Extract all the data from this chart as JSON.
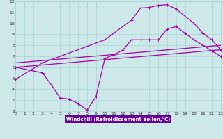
{
  "bg_color": "#cce8e8",
  "grid_color": "#aad4d4",
  "line_color": "#aa00aa",
  "spine_color": "#aaaaaa",
  "xlim": [
    0,
    23
  ],
  "ylim": [
    2,
    12
  ],
  "xticks": [
    0,
    1,
    2,
    3,
    4,
    5,
    6,
    7,
    8,
    9,
    10,
    11,
    12,
    13,
    14,
    15,
    16,
    17,
    18,
    19,
    20,
    21,
    22,
    23
  ],
  "yticks": [
    2,
    3,
    4,
    5,
    6,
    7,
    8,
    9,
    10,
    11,
    12
  ],
  "xlabel": "Windchill (Refroidissement éolien,°C)",
  "xlabel_color": "#cc00cc",
  "xlabel_bg": "#6600aa",
  "line1_x": [
    0,
    3,
    10,
    13,
    14,
    15,
    16,
    17,
    18,
    20,
    21,
    22,
    23
  ],
  "line1_y": [
    4.9,
    6.4,
    8.5,
    10.3,
    11.4,
    11.45,
    11.65,
    11.7,
    11.3,
    10.0,
    9.1,
    8.5,
    7.6
  ],
  "line2_x": [
    0,
    3,
    4,
    5,
    6,
    7,
    8,
    9,
    10,
    11,
    12,
    13,
    14,
    15,
    16,
    17,
    18,
    19,
    20,
    21,
    22,
    23
  ],
  "line2_y": [
    6.0,
    5.5,
    4.4,
    3.2,
    3.1,
    2.7,
    2.1,
    3.3,
    6.8,
    7.15,
    7.55,
    8.5,
    8.5,
    8.5,
    8.5,
    9.5,
    9.7,
    9.1,
    8.5,
    8.0,
    7.5,
    7.0
  ],
  "line3_x": [
    0,
    23
  ],
  "line3_y": [
    6.0,
    7.6
  ],
  "line4_x": [
    0,
    23
  ],
  "line4_y": [
    6.4,
    8.0
  ]
}
